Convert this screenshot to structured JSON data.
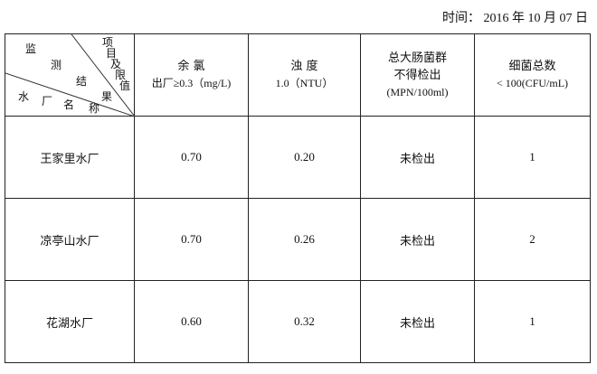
{
  "date": {
    "label": "时间：",
    "value": "2016 年 10 月 07 日"
  },
  "header": {
    "corner": {
      "chars_result": [
        "监",
        "测",
        "结",
        "果"
      ],
      "chars_item": [
        "项",
        "目",
        "及",
        "限",
        "值"
      ],
      "chars_plant": [
        "水",
        "厂",
        "名",
        "称"
      ]
    },
    "columns": [
      {
        "name": "余 氯",
        "limit": "出厂≥0.3（mg/L)"
      },
      {
        "name": "浊 度",
        "limit": "1.0（NTU）"
      },
      {
        "name": "总大肠菌群",
        "name2": "不得检出",
        "limit": "(MPN/100ml)"
      },
      {
        "name": "细菌总数",
        "limit": "< 100(CFU/mL)"
      }
    ]
  },
  "rows": [
    {
      "plant": "王家里水厂",
      "chlorine": "0.70",
      "turbidity": "0.20",
      "coliform": "未检出",
      "bacteria": "1"
    },
    {
      "plant": "凉亭山水厂",
      "chlorine": "0.70",
      "turbidity": "0.26",
      "coliform": "未检出",
      "bacteria": "2"
    },
    {
      "plant": "花湖水厂",
      "chlorine": "0.60",
      "turbidity": "0.32",
      "coliform": "未检出",
      "bacteria": "1"
    }
  ]
}
